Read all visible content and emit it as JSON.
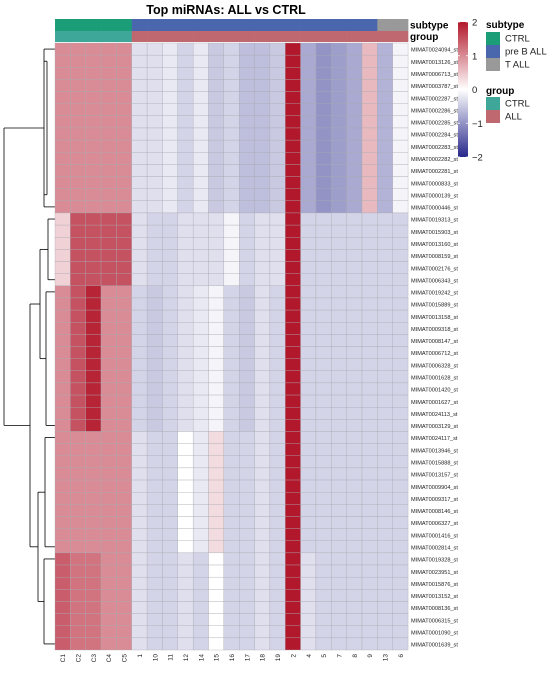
{
  "chart_data": {
    "type": "heatmap",
    "title": "Top miRNAs: ALL vs CTRL",
    "columns": [
      "C1",
      "C2",
      "C3",
      "C4",
      "C5",
      "1",
      "10",
      "11",
      "12",
      "14",
      "15",
      "16",
      "17",
      "18",
      "19",
      "2",
      "4",
      "5",
      "7",
      "8",
      "9",
      "13",
      "6"
    ],
    "subtype": [
      "CTRL",
      "CTRL",
      "CTRL",
      "CTRL",
      "CTRL",
      "pre B ALL",
      "pre B ALL",
      "pre B ALL",
      "pre B ALL",
      "pre B ALL",
      "pre B ALL",
      "pre B ALL",
      "pre B ALL",
      "pre B ALL",
      "pre B ALL",
      "pre B ALL",
      "pre B ALL",
      "pre B ALL",
      "pre B ALL",
      "pre B ALL",
      "pre B ALL",
      "T ALL",
      "T ALL"
    ],
    "group": [
      "CTRL",
      "CTRL",
      "CTRL",
      "CTRL",
      "CTRL",
      "ALL",
      "ALL",
      "ALL",
      "ALL",
      "ALL",
      "ALL",
      "ALL",
      "ALL",
      "ALL",
      "ALL",
      "ALL",
      "ALL",
      "ALL",
      "ALL",
      "ALL",
      "ALL",
      "ALL",
      "ALL"
    ],
    "annotation_labels": {
      "subtype": "subtype",
      "group": "group"
    },
    "rows": [
      "MIMAT0024094_st",
      "MIMAT0013126_st",
      "MIMAT0006713_st",
      "MIMAT0003787_st",
      "MIMAT0002287_st",
      "MIMAT0002286_st",
      "MIMAT0002285_st",
      "MIMAT0002284_st",
      "MIMAT0002283_st",
      "MIMAT0002282_st",
      "MIMAT0002281_st",
      "MIMAT0000833_st",
      "MIMAT0000139_st",
      "MIMAT0000446_st",
      "MIMAT0019313_st",
      "MIMAT0015903_st",
      "MIMAT0013160_st",
      "MIMAT0008159_st",
      "MIMAT0002176_st",
      "MIMAT0006343_st",
      "MIMAT0019242_st",
      "MIMAT0015889_st",
      "MIMAT0013158_st",
      "MIMAT0009318_st",
      "MIMAT0008147_st",
      "MIMAT0006712_st",
      "MIMAT0006328_st",
      "MIMAT0001628_st",
      "MIMAT0001420_st",
      "MIMAT0001627_st",
      "MIMAT0024113_st",
      "MIMAT0003129_st",
      "MIMAT0024117_st",
      "MIMAT0013946_st",
      "MIMAT0015888_st",
      "MIMAT0013157_st",
      "MIMAT0009904_st",
      "MIMAT0009317_st",
      "MIMAT0008146_st",
      "MIMAT0006327_st",
      "MIMAT0001416_st",
      "MIMAT0002814_st",
      "MIMAT0019328_st",
      "MIMAT0023951_st",
      "MIMAT0015876_st",
      "MIMAT0013152_st",
      "MIMAT0008136_st",
      "MIMAT0006315_st",
      "MIMAT0001090_st",
      "MIMAT0001639_st"
    ],
    "row_blocks": [
      {
        "rows": [
          0,
          13
        ],
        "values": [
          1.0,
          1.0,
          1.0,
          1.0,
          1.0,
          -0.3,
          -0.3,
          -0.2,
          -0.4,
          -0.2,
          -0.5,
          -0.4,
          -0.6,
          -0.6,
          -0.5,
          2.0,
          -0.8,
          -1.0,
          -0.9,
          -0.8,
          0.6,
          -0.7,
          -0.1
        ]
      },
      {
        "rows": [
          14,
          19
        ],
        "values": [
          0.4,
          1.5,
          1.5,
          1.5,
          1.5,
          -0.3,
          -0.4,
          -0.4,
          -0.3,
          -0.3,
          -0.3,
          -0.1,
          -0.4,
          -0.3,
          -0.3,
          2.0,
          -0.4,
          -0.4,
          -0.4,
          -0.4,
          -0.4,
          -0.4,
          -0.4
        ]
      },
      {
        "rows": [
          20,
          31
        ],
        "values": [
          1.0,
          1.5,
          1.9,
          1.0,
          1.0,
          -0.4,
          -0.5,
          -0.4,
          -0.3,
          -0.2,
          -0.1,
          -0.4,
          -0.5,
          -0.3,
          -0.4,
          2.0,
          -0.4,
          -0.4,
          -0.4,
          -0.4,
          -0.4,
          -0.4,
          -0.4
        ]
      },
      {
        "rows": [
          32,
          41
        ],
        "values": [
          1.0,
          1.0,
          1.0,
          1.0,
          1.0,
          -0.3,
          -0.4,
          -0.4,
          -0.0,
          -0.2,
          0.3,
          -0.4,
          -0.4,
          -0.3,
          -0.4,
          2.0,
          -0.4,
          -0.4,
          -0.4,
          -0.4,
          -0.4,
          -0.4,
          -0.4
        ]
      },
      {
        "rows": [
          42,
          49
        ],
        "values": [
          1.4,
          1.2,
          1.2,
          1.0,
          1.0,
          -0.3,
          -0.4,
          -0.4,
          -0.3,
          -0.4,
          -0.0,
          -0.4,
          -0.4,
          -0.3,
          -0.4,
          2.0,
          -0.3,
          -0.4,
          -0.4,
          -0.4,
          -0.4,
          -0.4,
          -0.4
        ]
      }
    ],
    "color_scale": {
      "min": -2,
      "mid": 0,
      "max": 2,
      "low": "#27278c",
      "middle": "#ffffff",
      "high": "#b2182b",
      "ticks": [
        2,
        1,
        0,
        -1,
        -2
      ]
    },
    "annotation_colors": {
      "subtype": {
        "CTRL": "#1b9e77",
        "pre B ALL": "#4a66ac",
        "T ALL": "#999999"
      },
      "group": {
        "CTRL": "#3fa69a",
        "ALL": "#c0686f"
      }
    },
    "legend": {
      "subtype_title": "subtype",
      "group_title": "group",
      "subtype_items": [
        "CTRL",
        "pre B ALL",
        "T ALL"
      ],
      "group_items": [
        "CTRL",
        "ALL"
      ]
    }
  }
}
